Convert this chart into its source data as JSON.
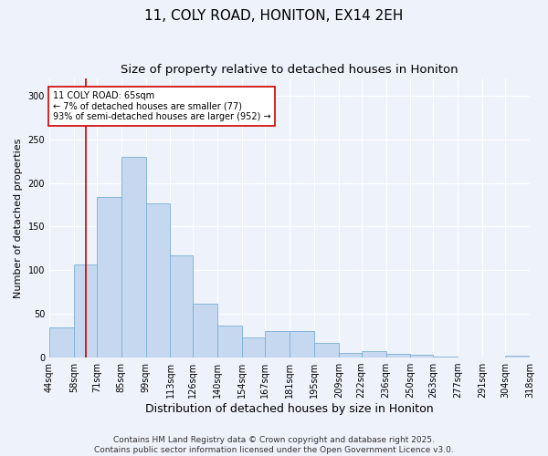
{
  "title": "11, COLY ROAD, HONITON, EX14 2EH",
  "subtitle": "Size of property relative to detached houses in Honiton",
  "xlabel": "Distribution of detached houses by size in Honiton",
  "ylabel": "Number of detached properties",
  "bar_color": "#c5d8f0",
  "bar_edge_color": "#7bafd4",
  "background_color": "#eef2fb",
  "grid_color": "#ffffff",
  "vline_x": 65,
  "vline_color": "#cc0000",
  "annotation_text": "11 COLY ROAD: 65sqm\n← 7% of detached houses are smaller (77)\n93% of semi-detached houses are larger (952) →",
  "annotation_box_facecolor": "#ffffff",
  "annotation_box_edgecolor": "#cc0000",
  "bins": [
    44,
    58,
    71,
    85,
    99,
    113,
    126,
    140,
    154,
    167,
    181,
    195,
    209,
    222,
    236,
    250,
    263,
    277,
    291,
    304,
    318
  ],
  "values": [
    35,
    107,
    184,
    230,
    176,
    117,
    62,
    37,
    23,
    30,
    30,
    17,
    5,
    7,
    4,
    3,
    1,
    0,
    0,
    2
  ],
  "ylim": [
    0,
    320
  ],
  "yticks": [
    0,
    50,
    100,
    150,
    200,
    250,
    300
  ],
  "footer_text": "Contains HM Land Registry data © Crown copyright and database right 2025.\nContains public sector information licensed under the Open Government Licence v3.0.",
  "title_fontsize": 11,
  "subtitle_fontsize": 9.5,
  "xlabel_fontsize": 9,
  "ylabel_fontsize": 8,
  "tick_fontsize": 7,
  "footer_fontsize": 6.5,
  "annot_fontsize": 7
}
